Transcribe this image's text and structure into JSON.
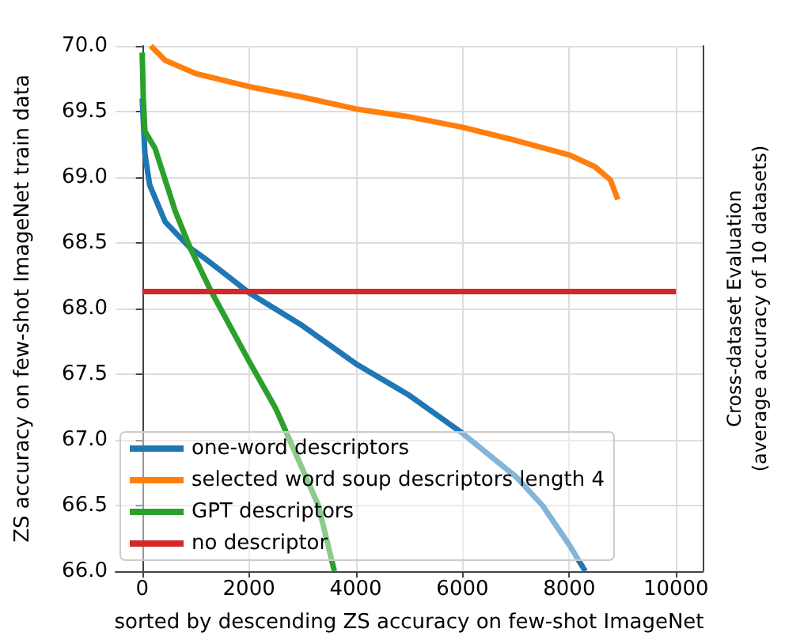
{
  "chart_data": {
    "type": "line",
    "xlabel": "sorted by descending ZS accuracy on few-shot ImageNet",
    "ylabel": "ZS accuracy on few-shot ImageNet train data",
    "y2label": "Cross-dataset Evaluation\n(average accuracy of 10 datasets)",
    "xlim": [
      -500,
      10500
    ],
    "xticks": [
      0,
      2000,
      4000,
      6000,
      8000,
      10000
    ],
    "ylim": [
      66,
      70
    ],
    "yticks": [
      {
        "value": 66,
        "label": "66.0"
      },
      66.5,
      {
        "value": 67,
        "label": "67.0"
      },
      67.5,
      {
        "value": 68,
        "label": "68.0"
      },
      68.5,
      {
        "value": 69,
        "label": "69.0"
      },
      69.5,
      {
        "value": 70,
        "label": "70.0"
      }
    ],
    "grid": true,
    "legend": "bottom left",
    "marker": "none",
    "line_style": "solid",
    "series": [
      {
        "name": "one-word descriptors",
        "color": "#1f77b4",
        "x": [
          0,
          50,
          140,
          430,
          900,
          1180,
          1560,
          2000,
          3000,
          4000,
          5000,
          6000,
          7000,
          7500,
          8000,
          8300
        ],
        "values": [
          69.6,
          69.18,
          68.94,
          68.66,
          68.46,
          68.38,
          68.26,
          68.12,
          67.87,
          67.58,
          67.34,
          67.05,
          66.72,
          66.5,
          66.2,
          66.0
        ]
      },
      {
        "name": "selected word soup descriptors length 4",
        "color": "#ff7f0e",
        "x": [
          160,
          430,
          1000,
          2000,
          3000,
          4000,
          5000,
          6000,
          7000,
          8000,
          8480,
          8770,
          8910
        ],
        "values": [
          70.0,
          69.89,
          69.79,
          69.69,
          69.61,
          69.52,
          69.46,
          69.38,
          69.28,
          69.17,
          69.08,
          68.98,
          68.83
        ]
      },
      {
        "name": "GPT descriptors",
        "color": "#2ca02c",
        "x": [
          0,
          20,
          50,
          240,
          620,
          900,
          1280,
          2000,
          2500,
          3000,
          3300,
          3600
        ],
        "values": [
          69.95,
          69.6,
          69.35,
          69.22,
          68.74,
          68.46,
          68.14,
          67.6,
          67.24,
          66.78,
          66.5,
          66.0
        ]
      },
      {
        "name": "no descriptor",
        "color": "#d62728",
        "x": [
          0,
          10000
        ],
        "values": [
          68.13,
          68.13
        ]
      }
    ]
  }
}
